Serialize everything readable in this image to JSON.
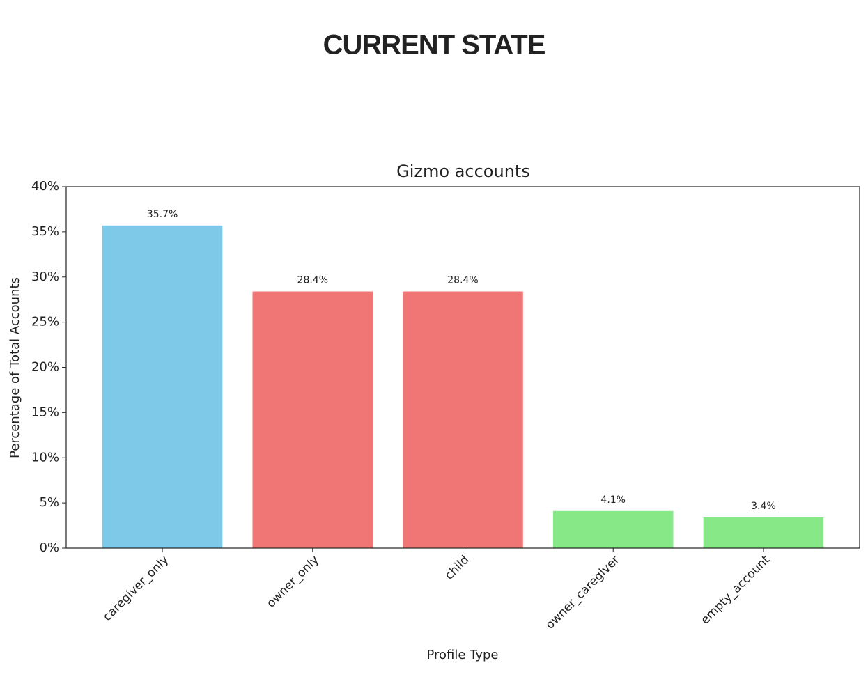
{
  "heading": "CURRENT STATE",
  "chart_data": {
    "type": "bar",
    "title": "Gizmo accounts",
    "x_label": "Profile Type",
    "y_label": "Percentage of Total Accounts",
    "categories": [
      "caregiver_only",
      "owner_only",
      "child",
      "owner_caregiver",
      "empty_account"
    ],
    "values": [
      35.7,
      28.4,
      28.4,
      4.1,
      3.4
    ],
    "value_labels": [
      "35.7%",
      "28.4%",
      "28.4%",
      "4.1%",
      "3.4%"
    ],
    "colors": [
      "#7ec8e8",
      "#ef7674",
      "#ef7674",
      "#86e887",
      "#86e887"
    ],
    "ylim": [
      0,
      40
    ],
    "yticks": [
      {
        "value": 0,
        "label": "0%"
      },
      {
        "value": 5,
        "label": "5%"
      },
      {
        "value": 10,
        "label": "10%"
      },
      {
        "value": 15,
        "label": "15%"
      },
      {
        "value": 20,
        "label": "20%"
      },
      {
        "value": 25,
        "label": "25%"
      },
      {
        "value": 30,
        "label": "30%"
      },
      {
        "value": 35,
        "label": "35%"
      },
      {
        "value": 40,
        "label": "40%"
      }
    ]
  }
}
